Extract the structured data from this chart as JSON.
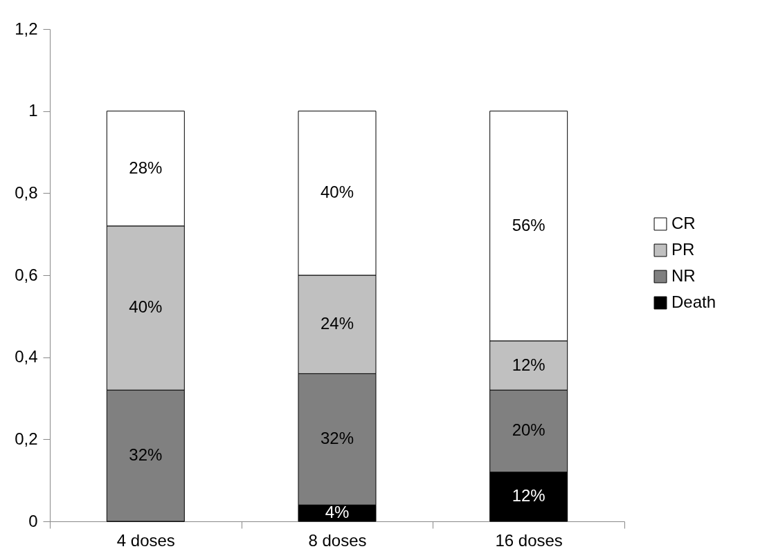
{
  "chart_data": {
    "type": "bar",
    "stacked": true,
    "categories": [
      "4 doses",
      "8 doses",
      "16 doses"
    ],
    "series": [
      {
        "name": "Death",
        "color": "#000000",
        "values": [
          0,
          0.04,
          0.12
        ],
        "value_labels": [
          null,
          "4%",
          "12%"
        ]
      },
      {
        "name": "NR",
        "color": "#808080",
        "values": [
          0.32,
          0.32,
          0.2
        ],
        "value_labels": [
          "32%",
          "32%",
          "20%"
        ]
      },
      {
        "name": "PR",
        "color": "#c0c0c0",
        "values": [
          0.4,
          0.24,
          0.12
        ],
        "value_labels": [
          "40%",
          "24%",
          "12%"
        ]
      },
      {
        "name": "CR",
        "color": "#ffffff",
        "values": [
          0.28,
          0.4,
          0.56
        ],
        "value_labels": [
          "28%",
          "40%",
          "56%"
        ]
      }
    ],
    "ylim": [
      0,
      1.2
    ],
    "yticks": [
      0,
      {
        "value": 0.2,
        "label": "0,2"
      },
      {
        "value": 0.4,
        "label": "0,4"
      },
      {
        "value": 0.6,
        "label": "0,6"
      },
      {
        "value": 0.8,
        "label": "0,8"
      },
      1,
      {
        "value": 1.2,
        "label": "1,2"
      }
    ],
    "grid": false,
    "legend": "right"
  }
}
